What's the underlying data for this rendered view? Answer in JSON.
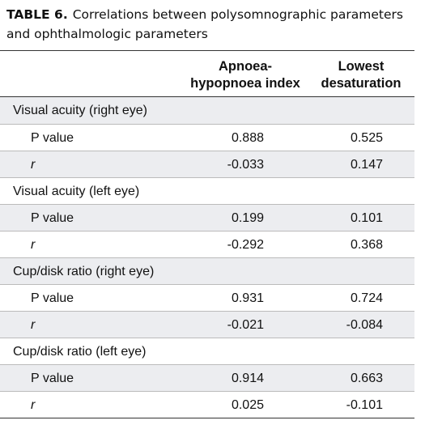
{
  "title": {
    "label": "TABLE 6.",
    "text": "Correlations between polysomnographic parameters and ophthalmologic parameters"
  },
  "table": {
    "columns": [
      [
        "Apnoea-",
        "hypopnoea index"
      ],
      [
        "Lowest",
        "desaturation"
      ]
    ],
    "sections": [
      {
        "label": "Visual acuity (right eye)",
        "rows": [
          {
            "label": "P value",
            "values": [
              "0.888",
              "0.525"
            ]
          },
          {
            "label": "r",
            "values": [
              "-0.033",
              "0.147"
            ]
          }
        ]
      },
      {
        "label": "Visual acuity (left eye)",
        "rows": [
          {
            "label": "P value",
            "values": [
              "0.199",
              "0.101"
            ]
          },
          {
            "label": "r",
            "values": [
              "-0.292",
              "0.368"
            ]
          }
        ]
      },
      {
        "label": "Cup/disk ratio (right eye)",
        "rows": [
          {
            "label": "P value",
            "values": [
              "0.931",
              "0.724"
            ]
          },
          {
            "label": "r",
            "values": [
              "-0.021",
              "-0.084"
            ]
          }
        ]
      },
      {
        "label": "Cup/disk ratio (left eye)",
        "rows": [
          {
            "label": "P value",
            "values": [
              "0.914",
              "0.663"
            ]
          },
          {
            "label": "r",
            "values": [
              "0.025",
              "-0.101"
            ]
          }
        ]
      }
    ]
  }
}
